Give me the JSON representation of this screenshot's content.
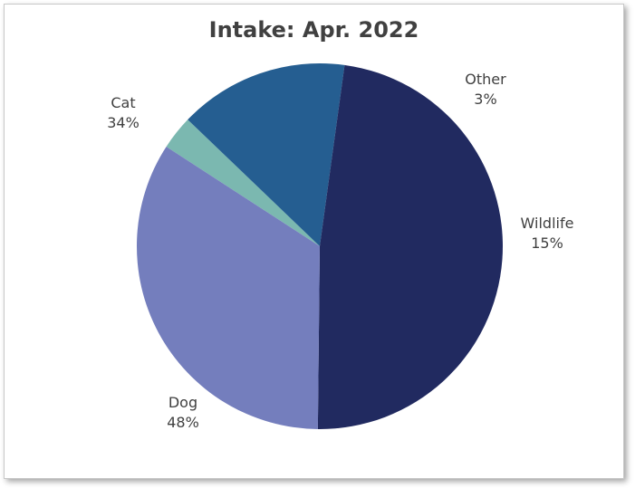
{
  "chart_data": {
    "type": "pie",
    "title": "Intake: Apr. 2022",
    "slices": [
      {
        "name": "Other",
        "value": 3,
        "label": "3%",
        "color": "#7bb8b0"
      },
      {
        "name": "Wildlife",
        "value": 15,
        "label": "15%",
        "color": "#255e91"
      },
      {
        "name": "Dog",
        "value": 48,
        "label": "48%",
        "color": "#212a60"
      },
      {
        "name": "Cat",
        "value": 34,
        "label": "34%",
        "color": "#747ebd"
      }
    ],
    "legend": "none"
  }
}
